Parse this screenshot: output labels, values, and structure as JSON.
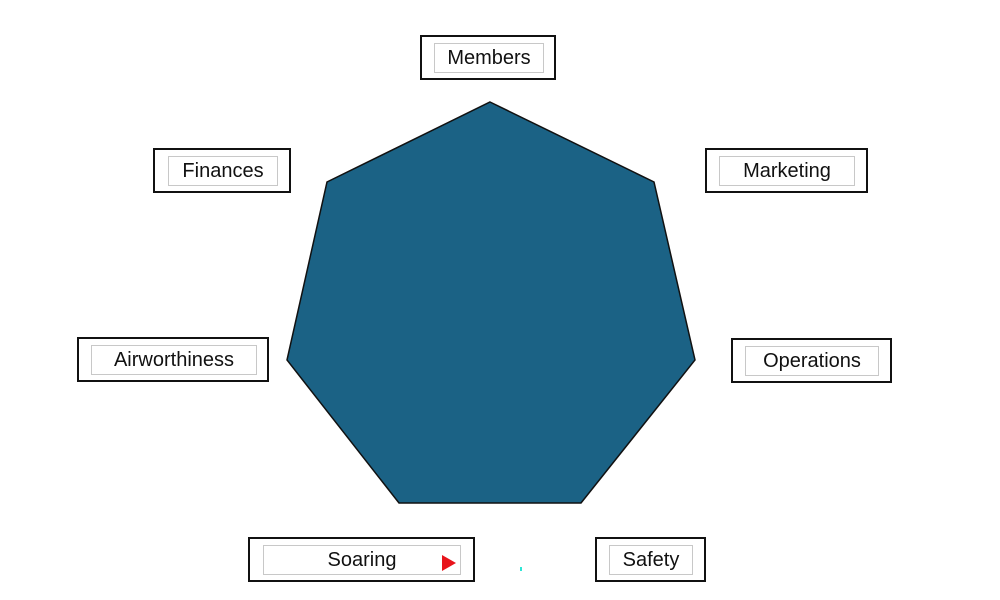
{
  "diagram": {
    "shape": "heptagon",
    "fill_color": "#1b6285",
    "stroke_color": "#111111",
    "labels": {
      "members": "Members",
      "marketing": "Marketing",
      "operations": "Operations",
      "safety": "Safety",
      "soaring": "Soaring",
      "airworthiness": "Airworthiness",
      "finances": "Finances"
    }
  },
  "icons": {
    "soaring_marker": "play-icon",
    "marker_color": "#e8141b"
  }
}
